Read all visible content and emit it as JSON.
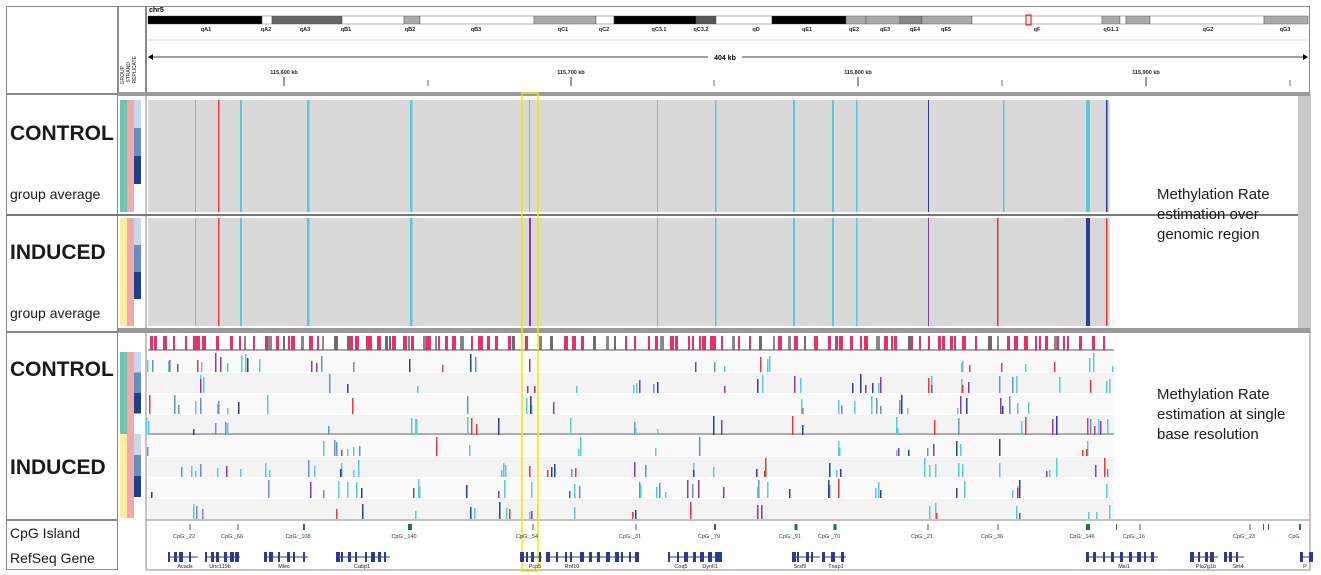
{
  "chromosome": "chr5",
  "ideogram_bands": [
    "qA1",
    "qA2",
    "qA3",
    "qB1",
    "qB2",
    "qB3",
    "qC1",
    "qC2",
    "qC3.1",
    "qC3.2",
    "qD",
    "qE1",
    "qE2",
    "qE3",
    "qE4",
    "qE5",
    "qF",
    "qG1.1",
    "qG2",
    "qG3"
  ],
  "span_label": "404 kb",
  "ruler_ticks": [
    "115,600 kb",
    "115,700 kb",
    "115,800 kb",
    "115,900 kb"
  ],
  "attribute_columns": [
    "GROUP",
    "STRAND",
    "REPLICATE"
  ],
  "panels": {
    "avg_control_label": "CONTROL",
    "avg_control_sub": "group average",
    "avg_induced_label": "INDUCED",
    "avg_induced_sub": "group average",
    "sb_control_label": "CONTROL",
    "sb_induced_label": "INDUCED"
  },
  "annotations": {
    "note_region": "Methylation Rate estimation over genomic region",
    "note_single": "Methylation Rate estimation at single base resolution"
  },
  "tracks": {
    "cpg_label": "CpG Island",
    "refseq_label": "RefSeq Gene",
    "cpg_features": [
      "CpG:_22",
      "CpG:_66",
      "CpG:_108",
      "CpG:_140",
      "CpG:_54",
      "CpG:_31",
      "CpG:_79",
      "CpG:_91",
      "CpG:_70",
      "CpG:_21",
      "CpG:_36",
      "CpG:_146",
      "CpG:_16",
      "CpG:_23",
      "CpG"
    ],
    "genes": [
      "Acads",
      "Unc119b",
      "Mlec",
      "Cabp1",
      "Pcp5",
      "Rnf10",
      "Coq5",
      "Dynll1",
      "Srsf9",
      "Triap1",
      "Msi1",
      "Pla2g1b",
      "Sirt4",
      "P"
    ]
  },
  "colors": {
    "methylated_red": "#e8393a",
    "unmethylated_cyan": "#5bc8e0",
    "dark_blue": "#2b3f9a",
    "purple": "#8a3aa0",
    "panel_gray": "#d9d9d9",
    "highlight_yellow": "#f2e600",
    "group_control": "#6ec3b0",
    "group_induced": "#fbf0a0",
    "strand_pink": "#f2a9a9"
  }
}
